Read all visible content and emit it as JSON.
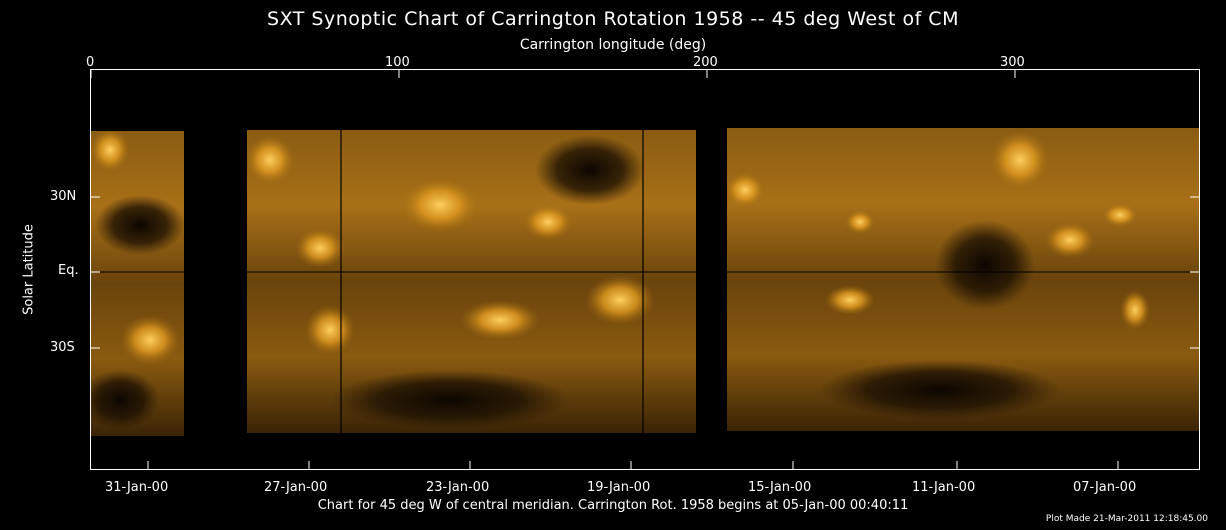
{
  "title": "SXT Synoptic Chart of Carrington Rotation 1958 -- 45 deg West of CM",
  "top_axis": {
    "label": "Carrington longitude (deg)",
    "ticks": [
      "0",
      "100",
      "200",
      "300"
    ]
  },
  "left_axis": {
    "label": "Solar Latitude",
    "ticks": [
      "30N",
      "Eq.",
      "30S"
    ]
  },
  "bottom_axis": {
    "ticks": [
      "31-Jan-00",
      "27-Jan-00",
      "23-Jan-00",
      "19-Jan-00",
      "15-Jan-00",
      "11-Jan-00",
      "07-Jan-00"
    ]
  },
  "footer": "Chart for 45 deg W of central meridian.  Carrington Rot. 1958 begins at 05-Jan-00 00:40:11",
  "plot_made": "Plot Made 21-Mar-2011 12:18:45.00",
  "colors": {
    "frame": "#ffffff",
    "corona_dark": "#2a1a05",
    "corona_mid": "#7a5210",
    "corona_bright": "#f0b030"
  }
}
